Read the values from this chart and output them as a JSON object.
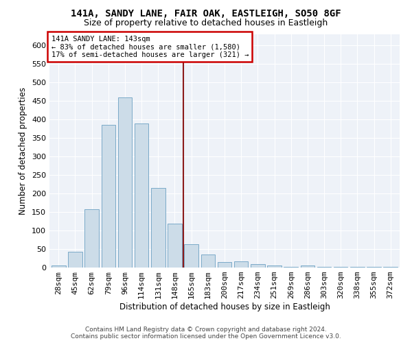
{
  "title1": "141A, SANDY LANE, FAIR OAK, EASTLEIGH, SO50 8GF",
  "title2": "Size of property relative to detached houses in Eastleigh",
  "xlabel": "Distribution of detached houses by size in Eastleigh",
  "ylabel": "Number of detached properties",
  "bar_labels": [
    "28sqm",
    "45sqm",
    "62sqm",
    "79sqm",
    "96sqm",
    "114sqm",
    "131sqm",
    "148sqm",
    "165sqm",
    "183sqm",
    "200sqm",
    "217sqm",
    "234sqm",
    "251sqm",
    "269sqm",
    "286sqm",
    "303sqm",
    "320sqm",
    "338sqm",
    "355sqm",
    "372sqm"
  ],
  "bar_values": [
    5,
    42,
    158,
    385,
    460,
    390,
    215,
    118,
    63,
    35,
    15,
    16,
    10,
    6,
    2,
    6,
    2,
    1,
    1,
    1,
    1
  ],
  "bar_color": "#ccdce8",
  "bar_edgecolor": "#7aaac8",
  "vline_x": 7.5,
  "vline_color": "#8b1a1a",
  "annotation_title": "141A SANDY LANE: 143sqm",
  "annotation_line1": "← 83% of detached houses are smaller (1,580)",
  "annotation_line2": "17% of semi-detached houses are larger (321) →",
  "annotation_box_edgecolor": "#cc0000",
  "footnote1": "Contains HM Land Registry data © Crown copyright and database right 2024.",
  "footnote2": "Contains public sector information licensed under the Open Government Licence v3.0.",
  "bg_color": "#eef2f8",
  "ylim": [
    0,
    630
  ],
  "yticks": [
    0,
    50,
    100,
    150,
    200,
    250,
    300,
    350,
    400,
    450,
    500,
    550,
    600
  ],
  "title1_fontsize": 10,
  "title2_fontsize": 9,
  "xlabel_fontsize": 8.5,
  "ylabel_fontsize": 8.5,
  "tick_fontsize": 8,
  "annot_fontsize": 7.5,
  "footnote_fontsize": 6.5
}
